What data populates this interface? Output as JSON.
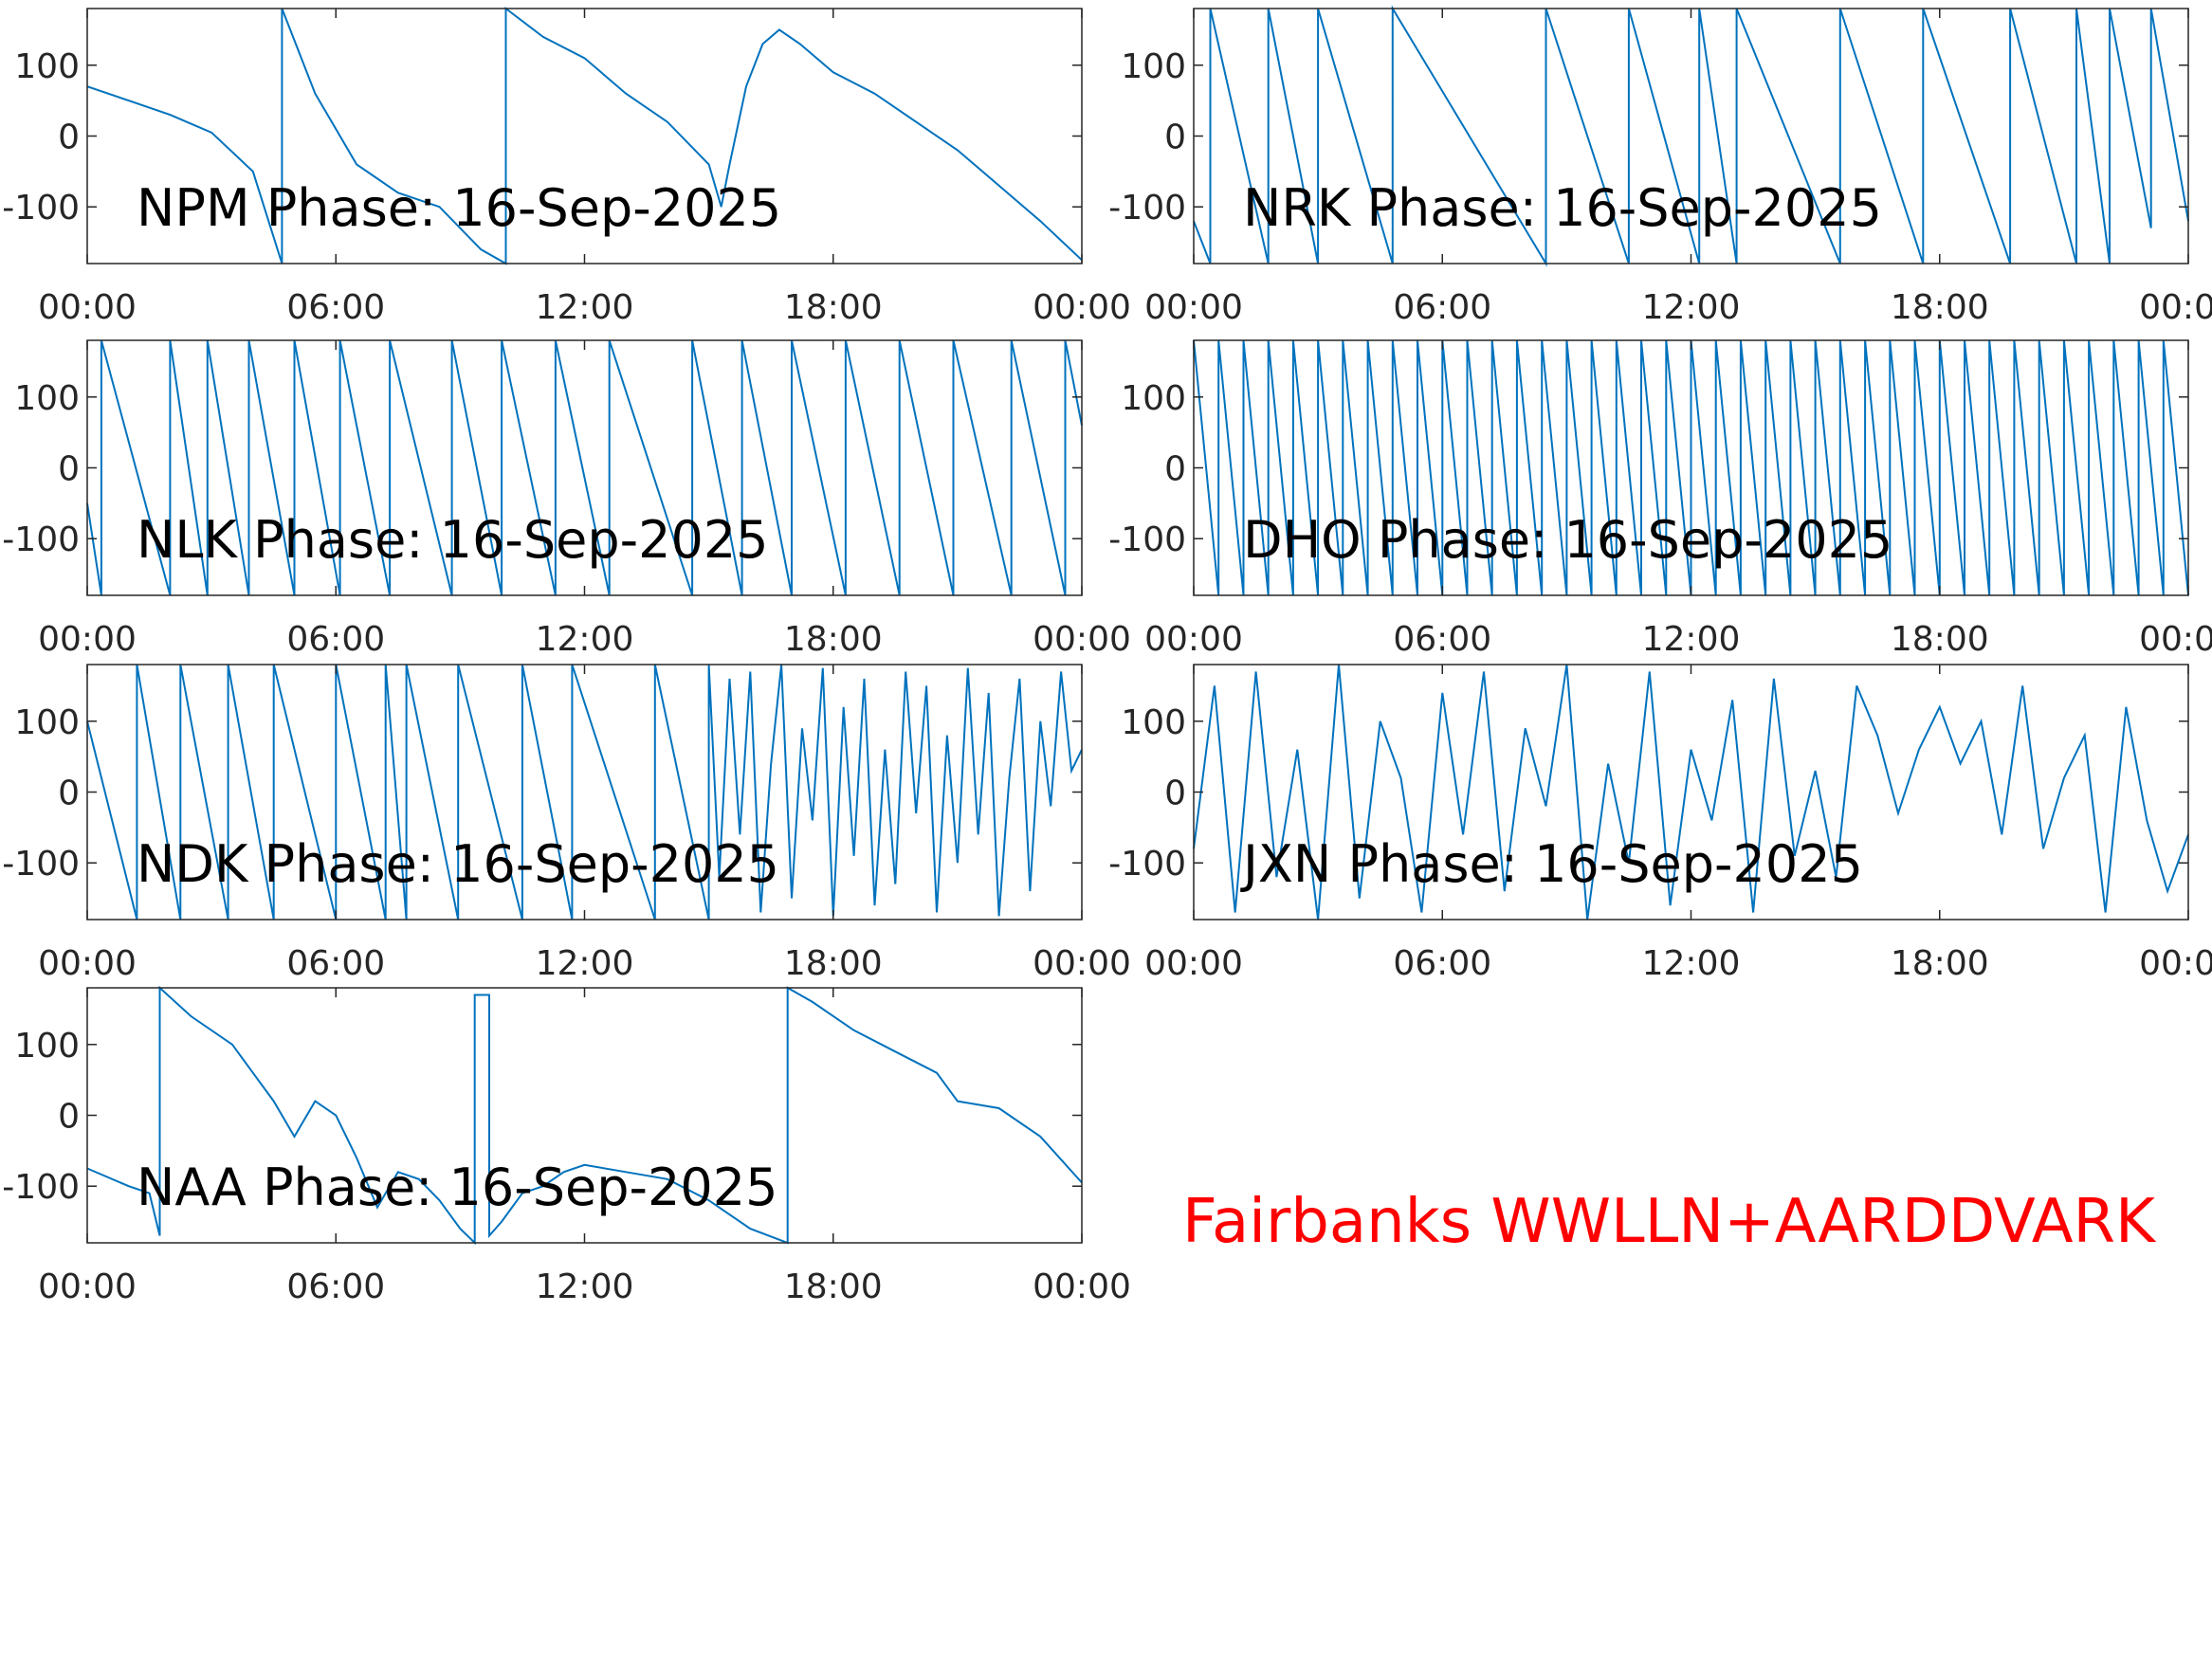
{
  "chart_data": [
    {
      "type": "line",
      "title": "NPM Phase: 16-Sep-2025",
      "color": "#0072bd",
      "x": [
        0,
        1,
        2,
        3,
        4,
        4.7,
        4.7,
        5.5,
        6.5,
        7.5,
        8.5,
        9.5,
        10.1,
        10.1,
        11,
        12,
        13,
        14,
        15,
        15.3,
        15.5,
        15.9,
        16.3,
        16.7,
        17.2,
        18,
        19,
        20,
        21,
        22,
        23,
        24
      ],
      "values": [
        70,
        50,
        30,
        5,
        -50,
        -180,
        180,
        60,
        -40,
        -80,
        -100,
        -160,
        -180,
        180,
        140,
        110,
        60,
        20,
        -40,
        -100,
        -40,
        70,
        130,
        150,
        130,
        90,
        60,
        20,
        -20,
        -70,
        -120,
        -175
      ],
      "xlim": [
        0,
        24
      ],
      "xticks": [
        {
          "value": 0,
          "label": "00:00"
        },
        {
          "value": 6,
          "label": "06:00"
        },
        {
          "value": 12,
          "label": "12:00"
        },
        {
          "value": 18,
          "label": "18:00"
        },
        {
          "value": 24,
          "label": "00:00"
        }
      ],
      "ylim": [
        -180,
        180
      ],
      "yticks": [
        -100,
        0,
        100
      ]
    },
    {
      "type": "line",
      "title": "NRK Phase: 16-Sep-2025",
      "color": "#0072bd",
      "x": [
        0,
        0.4,
        0.4,
        1.8,
        1.8,
        3,
        3,
        4.8,
        4.8,
        8.5,
        8.5,
        10.5,
        10.5,
        12.2,
        12.2,
        13.1,
        13.1,
        15.6,
        15.6,
        17.6,
        17.6,
        19.7,
        19.7,
        21.3,
        21.3,
        22.1,
        22.1,
        23.1,
        23.1,
        24
      ],
      "values": [
        -120,
        -180,
        180,
        -180,
        180,
        -180,
        180,
        -180,
        180,
        -180,
        180,
        -180,
        180,
        -180,
        180,
        -180,
        180,
        -180,
        180,
        -180,
        180,
        -180,
        180,
        -180,
        180,
        -180,
        180,
        -130,
        180,
        -120
      ],
      "xlim": [
        0,
        24
      ],
      "xticks": [
        {
          "value": 0,
          "label": "00:00"
        },
        {
          "value": 6,
          "label": "06:00"
        },
        {
          "value": 12,
          "label": "12:00"
        },
        {
          "value": 18,
          "label": "18:00"
        },
        {
          "value": 24,
          "label": "00:00"
        }
      ],
      "ylim": [
        -180,
        180
      ],
      "yticks": [
        -100,
        0,
        100
      ]
    },
    {
      "type": "line",
      "title": "NLK Phase: 16-Sep-2025",
      "color": "#0072bd",
      "x": [
        0,
        0.34,
        0.34,
        2,
        2,
        2.9,
        2.9,
        3.9,
        3.9,
        5,
        5,
        6.1,
        6.1,
        7.3,
        7.3,
        8.8,
        8.8,
        10,
        10,
        11.3,
        11.3,
        12.6,
        12.6,
        14.6,
        14.6,
        15.8,
        15.8,
        17,
        17,
        18.3,
        18.3,
        19.6,
        19.6,
        20.9,
        20.9,
        22.3,
        22.3,
        23.6,
        23.6,
        24
      ],
      "values": [
        -50,
        -180,
        180,
        -180,
        180,
        -180,
        180,
        -180,
        180,
        -180,
        180,
        -180,
        180,
        -180,
        180,
        -180,
        180,
        -180,
        180,
        -180,
        180,
        -180,
        180,
        -180,
        180,
        -180,
        180,
        -180,
        180,
        -180,
        180,
        -180,
        180,
        -180,
        180,
        -180,
        180,
        -180,
        180,
        60
      ],
      "xlim": [
        0,
        24
      ],
      "xticks": [
        {
          "value": 0,
          "label": "00:00"
        },
        {
          "value": 6,
          "label": "06:00"
        },
        {
          "value": 12,
          "label": "12:00"
        },
        {
          "value": 18,
          "label": "18:00"
        },
        {
          "value": 24,
          "label": "00:00"
        }
      ],
      "ylim": [
        -180,
        180
      ],
      "yticks": [
        -100,
        0,
        100
      ]
    },
    {
      "type": "line",
      "title": "DHO Phase: 16-Sep-2025",
      "color": "#0072bd",
      "x": [
        0,
        0.6,
        0.6,
        1.2,
        1.2,
        1.8,
        1.8,
        2.4,
        2.4,
        3,
        3,
        3.6,
        3.6,
        4.2,
        4.2,
        4.8,
        4.8,
        5.4,
        5.4,
        6,
        6,
        6.6,
        6.6,
        7.2,
        7.2,
        7.8,
        7.8,
        8.4,
        8.4,
        9,
        9,
        9.6,
        9.6,
        10.2,
        10.2,
        10.8,
        10.8,
        11.4,
        11.4,
        12,
        12,
        12.6,
        12.6,
        13.2,
        13.2,
        13.8,
        13.8,
        14.4,
        14.4,
        15,
        15,
        15.6,
        15.6,
        16.2,
        16.2,
        16.8,
        16.8,
        17.4,
        17.4,
        18,
        18,
        18.6,
        18.6,
        19.2,
        19.2,
        19.8,
        19.8,
        20.4,
        20.4,
        21,
        21,
        21.6,
        21.6,
        22.2,
        22.2,
        22.8,
        22.8,
        23.4,
        23.4,
        24
      ],
      "values": [
        180,
        -180,
        180,
        -180,
        180,
        -180,
        180,
        -180,
        180,
        -180,
        180,
        -180,
        180,
        -180,
        180,
        -180,
        180,
        -180,
        180,
        -180,
        180,
        -180,
        180,
        -180,
        180,
        -180,
        180,
        -180,
        180,
        -180,
        180,
        -180,
        180,
        -180,
        180,
        -180,
        180,
        -180,
        180,
        -180,
        180,
        -180,
        180,
        -180,
        180,
        -180,
        180,
        -180,
        180,
        -180,
        180,
        -180,
        180,
        -180,
        180,
        -180,
        180,
        -180,
        180,
        -180,
        180,
        -180,
        180,
        -180,
        180,
        -180,
        180,
        -180,
        180,
        -180,
        180,
        -180,
        180,
        -180,
        180,
        -180,
        180,
        -180,
        180,
        -180
      ],
      "xlim": [
        0,
        24
      ],
      "xticks": [
        {
          "value": 0,
          "label": "00:00"
        },
        {
          "value": 6,
          "label": "06:00"
        },
        {
          "value": 12,
          "label": "12:00"
        },
        {
          "value": 18,
          "label": "18:00"
        },
        {
          "value": 24,
          "label": "00:00"
        }
      ],
      "ylim": [
        -180,
        180
      ],
      "yticks": [
        -100,
        0,
        100
      ]
    },
    {
      "type": "line",
      "title": "NDK Phase: 16-Sep-2025",
      "color": "#0072bd",
      "x": [
        0,
        1.2,
        1.2,
        2.25,
        2.25,
        3.4,
        3.4,
        4.5,
        4.5,
        6,
        6,
        7.2,
        7.2,
        7.7,
        7.7,
        8.95,
        8.95,
        10.5,
        10.5,
        11.7,
        11.7,
        13.7,
        13.7,
        15,
        15,
        15.25,
        15.5,
        15.75,
        16,
        16.25,
        16.5,
        16.75,
        17,
        17.25,
        17.5,
        17.75,
        18,
        18.25,
        18.5,
        18.75,
        19,
        19.25,
        19.5,
        19.75,
        20,
        20.25,
        20.5,
        20.75,
        21,
        21.25,
        21.5,
        21.75,
        22,
        22.25,
        22.5,
        22.75,
        23,
        23.25,
        23.5,
        23.75,
        24
      ],
      "values": [
        100,
        -180,
        180,
        -180,
        180,
        -180,
        180,
        -180,
        180,
        -180,
        180,
        -180,
        180,
        -180,
        180,
        -180,
        180,
        -180,
        180,
        -180,
        180,
        -180,
        180,
        -180,
        180,
        -120,
        160,
        -60,
        170,
        -170,
        40,
        180,
        -150,
        90,
        -40,
        175,
        -175,
        120,
        -90,
        160,
        -160,
        60,
        -130,
        170,
        -30,
        150,
        -170,
        80,
        -100,
        175,
        -60,
        140,
        -175,
        20,
        160,
        -140,
        100,
        -20,
        170,
        30,
        60
      ],
      "xlim": [
        0,
        24
      ],
      "xticks": [
        {
          "value": 0,
          "label": "00:00"
        },
        {
          "value": 6,
          "label": "06:00"
        },
        {
          "value": 12,
          "label": "12:00"
        },
        {
          "value": 18,
          "label": "18:00"
        },
        {
          "value": 24,
          "label": "00:00"
        }
      ],
      "ylim": [
        -180,
        180
      ],
      "yticks": [
        -100,
        0,
        100
      ]
    },
    {
      "type": "line",
      "title": "JXN Phase: 16-Sep-2025",
      "color": "#0072bd",
      "x": [
        0,
        0.5,
        1,
        1.5,
        2,
        2.5,
        3,
        3.5,
        4,
        4.5,
        5,
        5.5,
        6,
        6.5,
        7,
        7.5,
        8,
        8.5,
        9,
        9.5,
        10,
        10.5,
        11,
        11.5,
        12,
        12.5,
        13,
        13.5,
        14,
        14.5,
        15,
        15.5,
        16,
        16.5,
        17,
        17.5,
        18,
        18.5,
        19,
        19.5,
        20,
        20.5,
        21,
        21.5,
        22,
        22.5,
        23,
        23.5,
        24
      ],
      "values": [
        -80,
        150,
        -170,
        170,
        -120,
        60,
        -180,
        180,
        -150,
        100,
        20,
        -170,
        140,
        -60,
        170,
        -140,
        90,
        -20,
        180,
        -180,
        40,
        -100,
        170,
        -160,
        60,
        -40,
        130,
        -170,
        160,
        -90,
        30,
        -120,
        150,
        80,
        -30,
        60,
        120,
        40,
        100,
        -60,
        150,
        -80,
        20,
        80,
        -170,
        120,
        -40,
        -140,
        -60
      ],
      "xlim": [
        0,
        24
      ],
      "xticks": [
        {
          "value": 0,
          "label": "00:00"
        },
        {
          "value": 6,
          "label": "06:00"
        },
        {
          "value": 12,
          "label": "12:00"
        },
        {
          "value": 18,
          "label": "18:00"
        },
        {
          "value": 24,
          "label": "00:00"
        }
      ],
      "ylim": [
        -180,
        180
      ],
      "yticks": [
        -100,
        0,
        100
      ]
    },
    {
      "type": "line",
      "title": "NAA Phase: 16-Sep-2025",
      "color": "#0072bd",
      "x": [
        0,
        1,
        1.5,
        1.75,
        1.75,
        2.5,
        3.5,
        4,
        4.5,
        5,
        5.5,
        6,
        6.5,
        7,
        7.5,
        8,
        8.5,
        9,
        9.35,
        9.35,
        9.7,
        9.7,
        10,
        10.5,
        11,
        11.5,
        12,
        13,
        14,
        15,
        16,
        16.9,
        16.9,
        17.5,
        18.5,
        19.5,
        20.5,
        21,
        22,
        23,
        24
      ],
      "values": [
        -75,
        -100,
        -110,
        -170,
        180,
        140,
        100,
        60,
        20,
        -30,
        20,
        0,
        -60,
        -130,
        -80,
        -90,
        -120,
        -160,
        -180,
        170,
        170,
        -170,
        -150,
        -110,
        -100,
        -80,
        -70,
        -80,
        -90,
        -120,
        -160,
        -180,
        180,
        160,
        120,
        90,
        60,
        20,
        10,
        -30,
        -95
      ],
      "xlim": [
        0,
        24
      ],
      "xticks": [
        {
          "value": 0,
          "label": "00:00"
        },
        {
          "value": 6,
          "label": "06:00"
        },
        {
          "value": 12,
          "label": "12:00"
        },
        {
          "value": 18,
          "label": "18:00"
        },
        {
          "value": 24,
          "label": "00:00"
        }
      ],
      "ylim": [
        -180,
        180
      ],
      "yticks": [
        -100,
        0,
        100
      ]
    }
  ],
  "annotation": {
    "text": "Fairbanks WWLLN+AARDDVARK",
    "color": "#ff0000"
  }
}
